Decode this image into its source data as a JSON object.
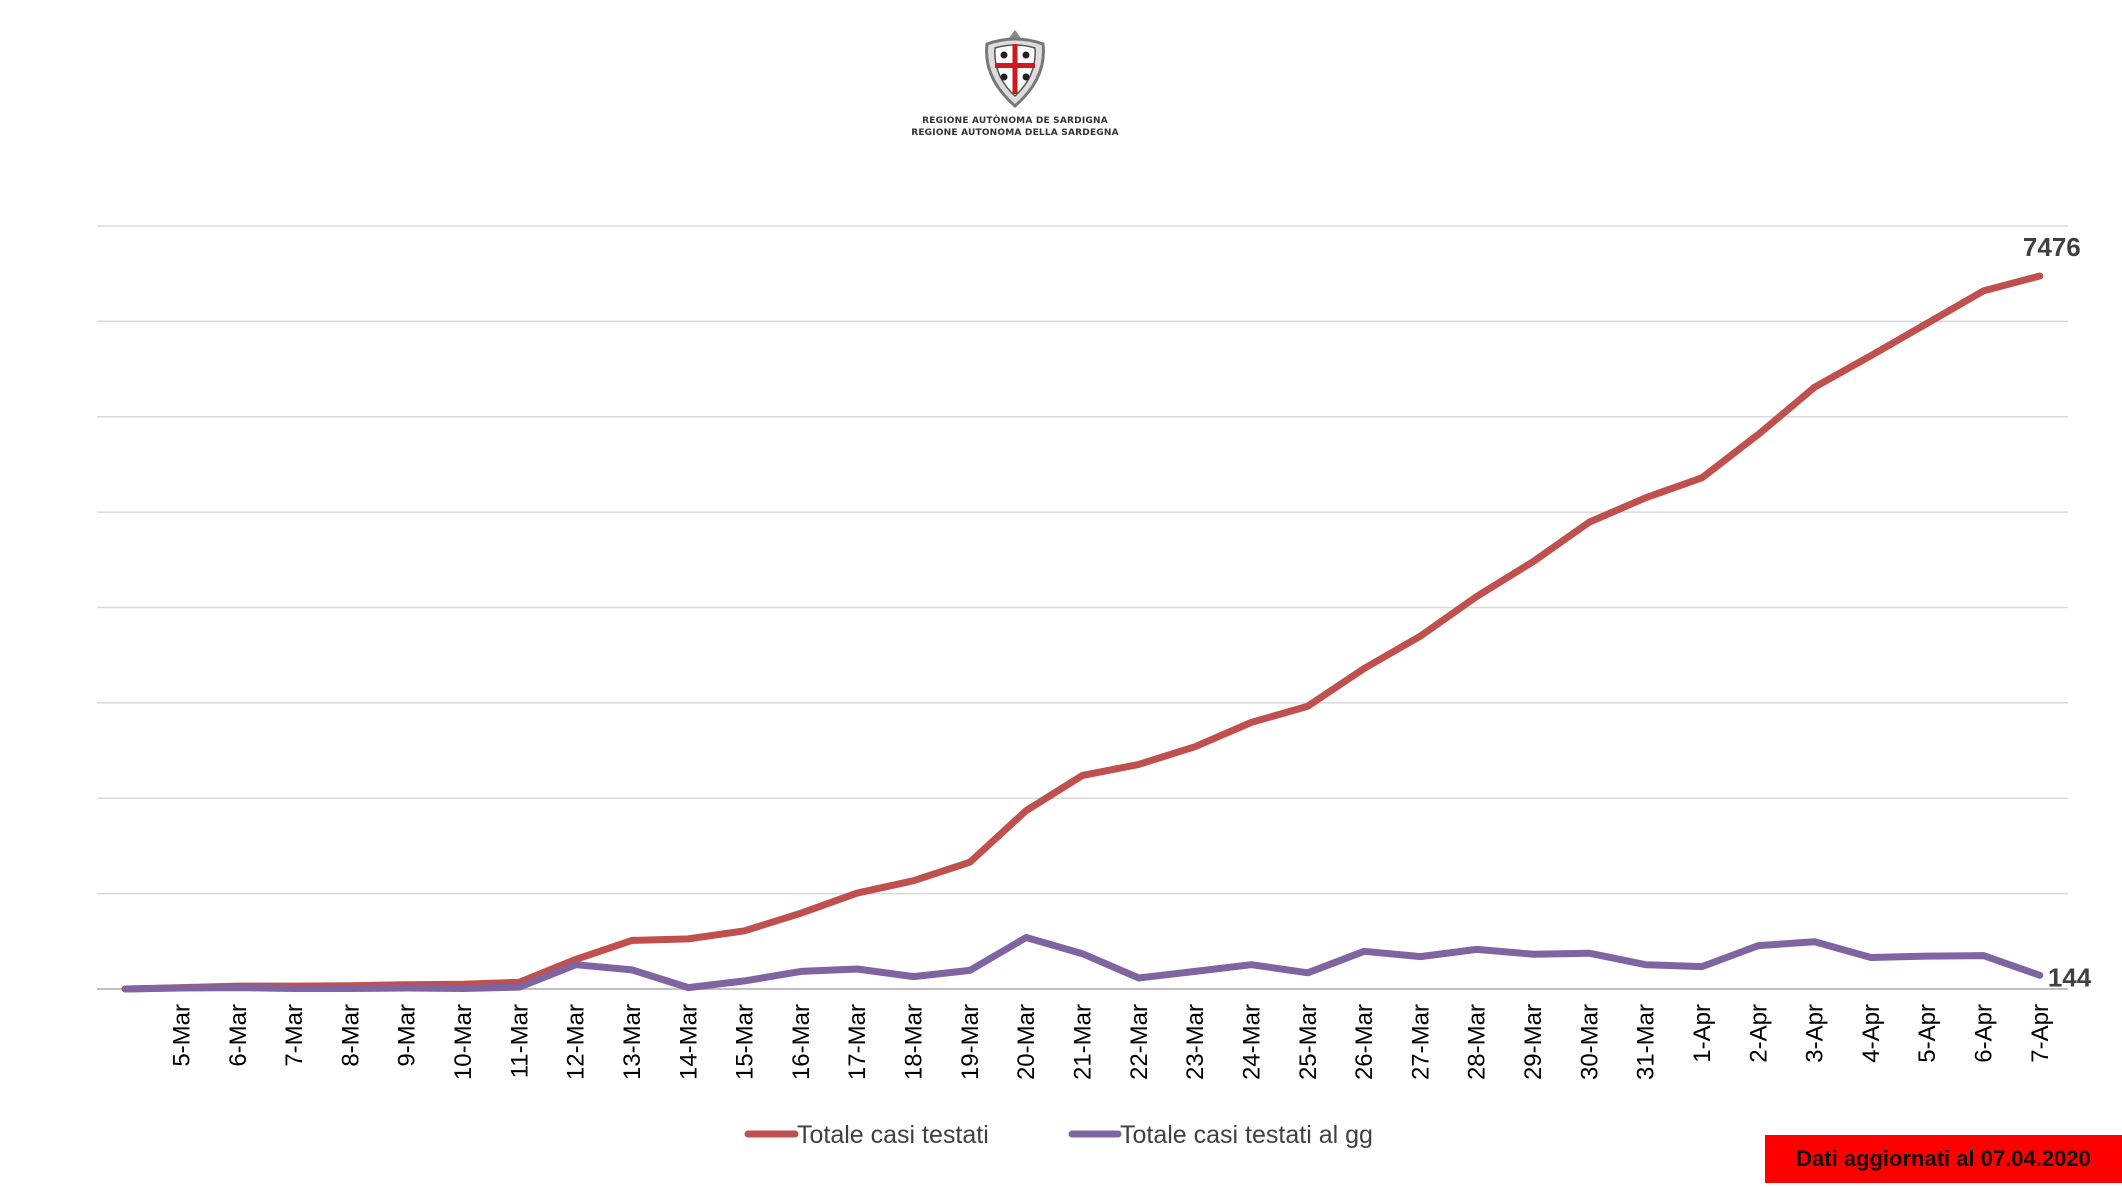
{
  "header": {
    "logo_line1": "REGIONE AUTÒNOMA DE SARDIGNA",
    "logo_line2": "REGIONE AUTONOMA DELLA SARDEGNA"
  },
  "badge": {
    "text": "Dati aggiornati al 07.04.2020",
    "color": "#ff0000"
  },
  "chart_data": {
    "type": "line",
    "title": "",
    "xlabel": "",
    "ylabel": "",
    "ylim": [
      0,
      8000
    ],
    "grid": true,
    "y_tick_labels_shown": false,
    "legend_position": "bottom",
    "categories": [
      "",
      "5-Mar",
      "6-Mar",
      "7-Mar",
      "8-Mar",
      "9-Mar",
      "10-Mar",
      "11-Mar",
      "12-Mar",
      "13-Mar",
      "14-Mar",
      "15-Mar",
      "16-Mar",
      "17-Mar",
      "18-Mar",
      "19-Mar",
      "20-Mar",
      "21-Mar",
      "22-Mar",
      "23-Mar",
      "24-Mar",
      "25-Mar",
      "26-Mar",
      "27-Mar",
      "28-Mar",
      "29-Mar",
      "30-Mar",
      "31-Mar",
      "1-Apr",
      "2-Apr",
      "3-Apr",
      "4-Apr",
      "5-Apr",
      "6-Apr",
      "7-Apr"
    ],
    "series": [
      {
        "name": "Totale casi testati",
        "color": "#c0504d",
        "values": [
          0,
          15,
          30,
          30,
          35,
          45,
          50,
          70,
          310,
          510,
          525,
          610,
          795,
          1005,
          1135,
          1330,
          1870,
          2240,
          2355,
          2540,
          2795,
          2965,
          3360,
          3700,
          4115,
          4480,
          4895,
          5150,
          5360,
          5815,
          6310,
          6640,
          6980,
          7320,
          7476
        ],
        "end_label": "7476"
      },
      {
        "name": "Totale casi testati al gg",
        "color": "#8064a2",
        "values": [
          0,
          10,
          15,
          5,
          5,
          10,
          5,
          20,
          255,
          200,
          15,
          85,
          185,
          210,
          130,
          195,
          540,
          370,
          115,
          185,
          255,
          170,
          395,
          340,
          415,
          365,
          375,
          255,
          235,
          455,
          495,
          330,
          345,
          350,
          144
        ],
        "end_label": "144"
      }
    ]
  }
}
